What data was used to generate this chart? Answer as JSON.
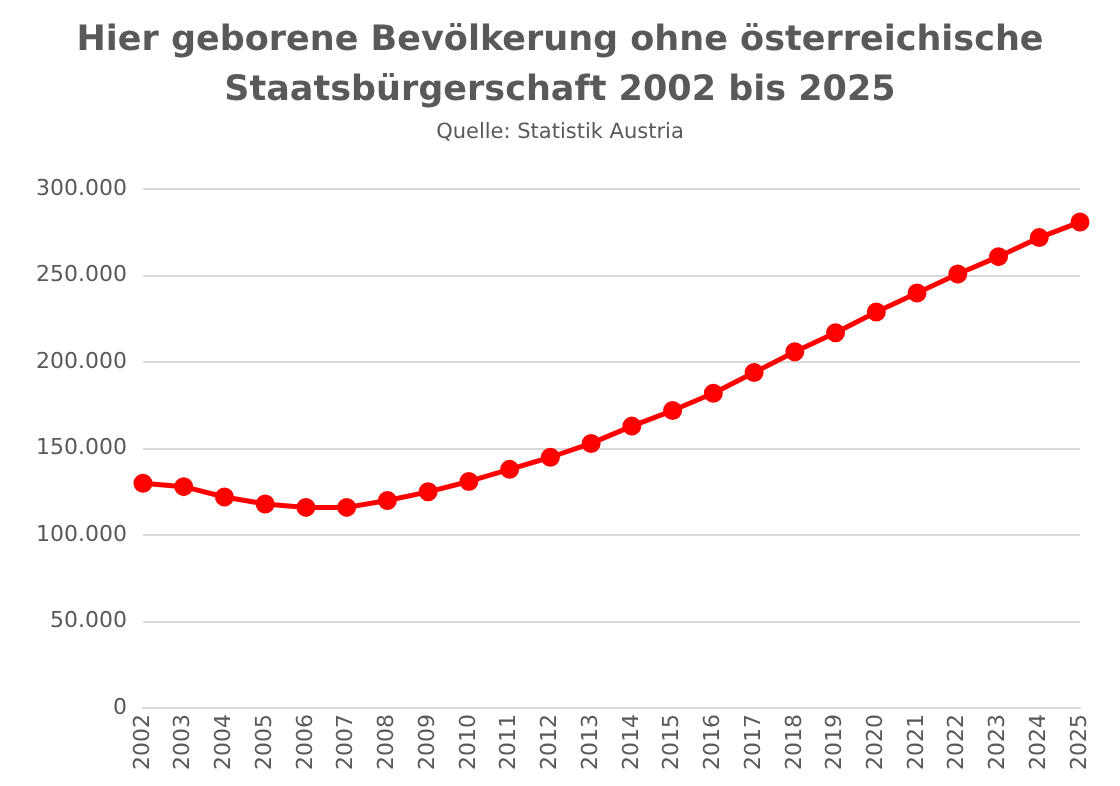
{
  "chart_data": {
    "type": "line",
    "title": "Hier geborene Bevölkerung ohne österreichische Staatsbürgerschaft 2002 bis 2025",
    "annotations": [
      "Quelle: Statistik Austria"
    ],
    "categories": [
      "2002",
      "2003",
      "2004",
      "2005",
      "2006",
      "2007",
      "2008",
      "2009",
      "2010",
      "2011",
      "2012",
      "2013",
      "2014",
      "2015",
      "2016",
      "2017",
      "2018",
      "2019",
      "2020",
      "2021",
      "2022",
      "2023",
      "2024",
      "2025"
    ],
    "series": [
      {
        "color": "#ff0000",
        "values": [
          130000,
          128000,
          122000,
          118000,
          116000,
          116000,
          120000,
          125000,
          131000,
          138000,
          145000,
          153000,
          163000,
          172000,
          182000,
          194000,
          206000,
          217000,
          229000,
          240000,
          251000,
          261000,
          272000,
          281000
        ]
      }
    ],
    "ylim": [
      0,
      300000
    ],
    "yticks": [
      0,
      {
        "value": 50000,
        "label": "50.000"
      },
      {
        "value": 100000,
        "label": "100.000"
      },
      {
        "value": 150000,
        "label": "150.000"
      },
      {
        "value": 200000,
        "label": "200.000"
      },
      {
        "value": 250000,
        "label": "250.000"
      },
      {
        "value": 300000,
        "label": "300.000"
      }
    ],
    "grid": "y",
    "legend": false,
    "marker": "circle",
    "line_style": "solid"
  }
}
